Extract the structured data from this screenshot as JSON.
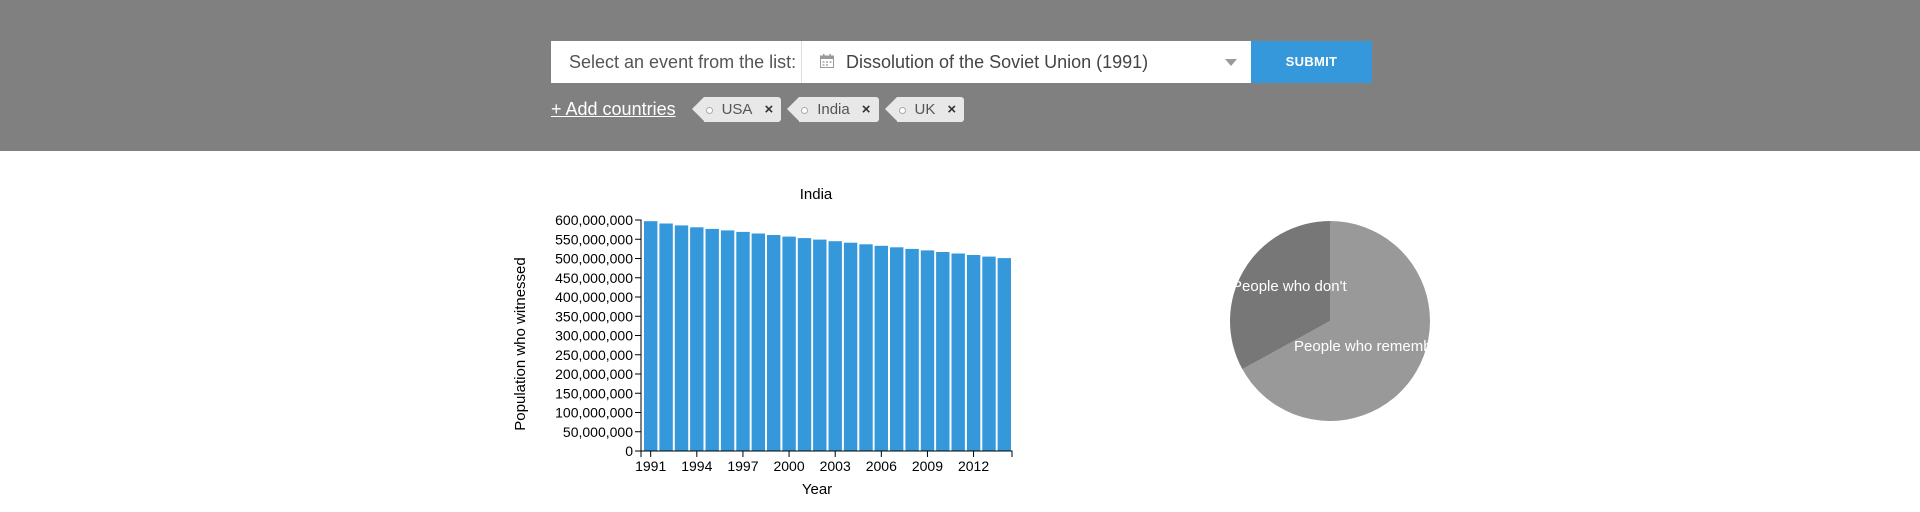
{
  "form": {
    "label": "Select an event from the list:",
    "selected_event": "Dissolution of the Soviet Union (1991)",
    "submit_label": "SUBMIT"
  },
  "countries": {
    "add_link": "+ Add countries",
    "tags": [
      "USA",
      "India",
      "UK"
    ]
  },
  "colors": {
    "header_bg": "#808080",
    "accent": "#3498db",
    "bar": "#3498db",
    "pie_remember": "#999999",
    "pie_dont": "#777777"
  },
  "chart_data": [
    {
      "type": "bar",
      "title": "India",
      "xlabel": "Year",
      "ylabel": "Population who witnessed",
      "ylim": [
        0,
        600000000
      ],
      "yticks": [
        "0",
        "50,000,000",
        "100,000,000",
        "150,000,000",
        "200,000,000",
        "250,000,000",
        "300,000,000",
        "350,000,000",
        "400,000,000",
        "450,000,000",
        "500,000,000",
        "550,000,000",
        "600,000,000"
      ],
      "xticks": [
        "1991",
        "1994",
        "1997",
        "2000",
        "2003",
        "2006",
        "2009",
        "2012"
      ],
      "categories": [
        "1991",
        "1992",
        "1993",
        "1994",
        "1995",
        "1996",
        "1997",
        "1998",
        "1999",
        "2000",
        "2001",
        "2002",
        "2003",
        "2004",
        "2005",
        "2006",
        "2007",
        "2008",
        "2009",
        "2010",
        "2011",
        "2012",
        "2013",
        "2014"
      ],
      "values": [
        597000000,
        591000000,
        586000000,
        581000000,
        577000000,
        573000000,
        569000000,
        565000000,
        561000000,
        557000000,
        553000000,
        549000000,
        545000000,
        541000000,
        537000000,
        533000000,
        529000000,
        525000000,
        521000000,
        517000000,
        513000000,
        509000000,
        505000000,
        501000000
      ]
    },
    {
      "type": "pie",
      "labels": [
        "People who remember",
        "People who don't"
      ],
      "values": [
        0.67,
        0.33
      ]
    }
  ]
}
